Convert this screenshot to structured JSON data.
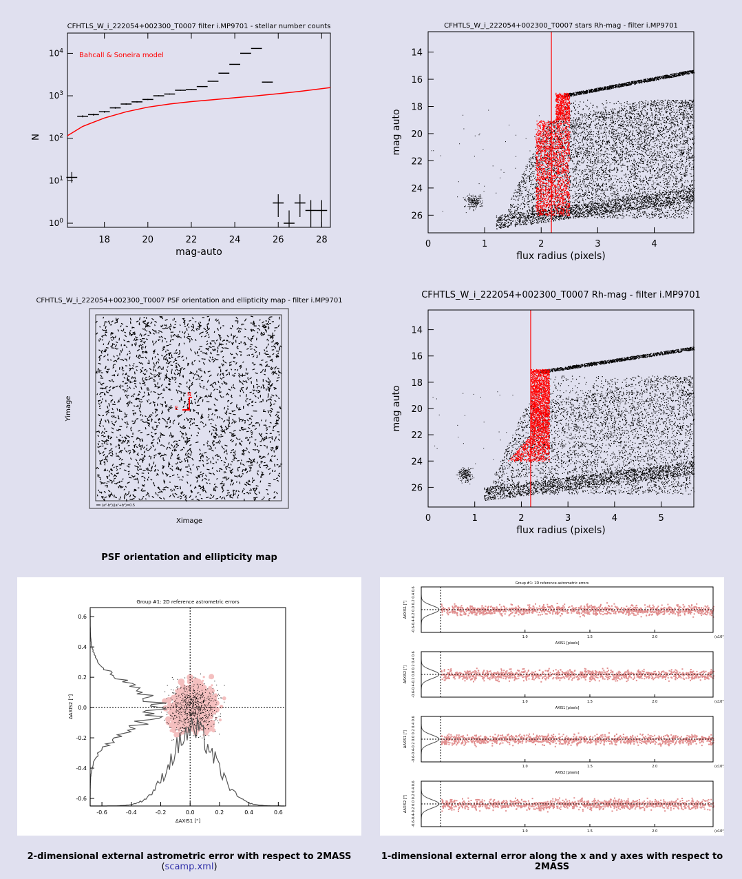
{
  "colors": {
    "bg": "#e0e0ef",
    "red": "#ff0000",
    "dred": "#c81e1e",
    "pink": "#f2a0a0"
  },
  "chart_data": [
    {
      "type": "scatter",
      "title": "CFHTLS_W_i_222054+002300_T0007 filter i.MP9701 - stellar number counts",
      "xlabel": "mag-auto",
      "ylabel": "N",
      "log_y": true,
      "xlim": [
        16.3,
        28.4
      ],
      "ylim": [
        0.8,
        30000
      ],
      "xticks": [
        "18",
        "20",
        "22",
        "24",
        "26",
        "28"
      ],
      "yticks": [
        "10^0",
        "10^1",
        "10^2",
        "10^3",
        "10^4"
      ],
      "model_label": "Bahcall & Soneira model",
      "model_x": [
        16.3,
        17,
        18,
        19,
        20,
        21,
        22,
        23,
        24,
        25,
        26,
        27,
        28.4
      ],
      "model_y": [
        115,
        190,
        300,
        420,
        540,
        640,
        730,
        810,
        900,
        1000,
        1120,
        1270,
        1560
      ],
      "x": [
        16.5,
        17.0,
        17.5,
        18.0,
        18.5,
        19.0,
        19.5,
        20.0,
        20.5,
        21.0,
        21.5,
        22.0,
        22.5,
        23.0,
        23.5,
        24.0,
        24.5,
        25.0,
        25.5,
        26.0,
        26.5,
        27.0,
        27.5,
        28.0
      ],
      "y": [
        12,
        330,
        360,
        420,
        520,
        640,
        720,
        820,
        1000,
        1100,
        1350,
        1400,
        1650,
        2200,
        3400,
        5500,
        10000,
        13000,
        2100,
        3,
        1,
        3,
        2,
        2
      ],
      "yerr_up": [
        4,
        18,
        19,
        20,
        23,
        25,
        27,
        29,
        32,
        33,
        37,
        37,
        41,
        47,
        58,
        74,
        100,
        114,
        46,
        1.8,
        1,
        1.8,
        1.5,
        1.5
      ],
      "yerr_dn": [
        3,
        18,
        19,
        20,
        23,
        25,
        27,
        29,
        32,
        33,
        37,
        37,
        41,
        47,
        58,
        74,
        100,
        114,
        46,
        1.6,
        0.5,
        1.6,
        1.2,
        1.2
      ]
    },
    {
      "type": "scatter",
      "title": "CFHTLS_W_i_222054+002300_T0007 stars Rh-mag - filter i.MP9701",
      "xlabel": "flux radius (pixels)",
      "ylabel": "mag auto",
      "xlim": [
        0,
        4.7
      ],
      "ylim": [
        27.3,
        12.5
      ],
      "xticks": [
        "0",
        "1",
        "2",
        "3",
        "4"
      ],
      "yticks": [
        "14",
        "16",
        "18",
        "20",
        "22",
        "24",
        "26"
      ],
      "vline_x": 2.18
    },
    {
      "type": "scatter",
      "title": "CFHTLS_W_i_222054+002300_T0007 PSF orientation and ellipticity map - filter i.MP9701",
      "xlabel": "Ximage",
      "ylabel": "Yimage",
      "legend_text": "(a²-b²)/(a²+b²)=0.5"
    },
    {
      "type": "scatter",
      "title": "CFHTLS_W_i_222054+002300_T0007 Rh-mag - filter i.MP9701",
      "xlabel": "flux radius (pixels)",
      "ylabel": "mag auto",
      "xlim": [
        0,
        5.7
      ],
      "ylim": [
        27.5,
        12.5
      ],
      "xticks": [
        "0",
        "1",
        "2",
        "3",
        "4",
        "5"
      ],
      "yticks": [
        "14",
        "16",
        "18",
        "20",
        "22",
        "24",
        "26"
      ],
      "vline_x": 2.2
    },
    {
      "type": "scatter",
      "title": "Group #1: 2D reference astrometric errors",
      "xlabel": "ΔAXIS1 [\"]",
      "ylabel": "ΔAXIS2 [\"]",
      "xlim": [
        -0.68,
        0.65
      ],
      "ylim": [
        -0.65,
        0.66
      ],
      "xticks": [
        "-0.6",
        "-0.4",
        "-0.2",
        "0.0",
        "0.2",
        "0.4",
        "0.6"
      ],
      "yticks": [
        "-0.6",
        "-0.4",
        "-0.2",
        "0.0",
        "0.2",
        "0.4",
        "0.6"
      ]
    },
    {
      "type": "scatter",
      "title": "Group #1: 1D reference astrometric errors",
      "panels": [
        {
          "ylabel": "ΔAXIS1 [\"]",
          "xlabel": "AXIS1 [pixels]"
        },
        {
          "ylabel": "ΔAXIS2 [\"]",
          "xlabel": "AXIS1 [pixels]"
        },
        {
          "ylabel": "ΔAXIS1 [\"]",
          "xlabel": "AXIS2 [pixels]"
        },
        {
          "ylabel": "ΔAXIS2 [\"]",
          "xlabel": "AXIS2 [pixels]"
        }
      ],
      "xlim": [
        0.2,
        2.45
      ],
      "xticks": [
        "1.0",
        "1.5",
        "2.0"
      ],
      "yticks": "-0.6-0.4-0.2 0.0 0.2 0.4 0.6",
      "xscale_label": "(x10⁴)"
    }
  ],
  "captions": {
    "psf": "PSF orientation and ellipticity map",
    "err2d": "2-dimensional external astrometric error with respect to 2MASS",
    "err2d_link": "scamp.xml",
    "err1d": "1-dimensional external error along the x and y axes with respect to 2MASS"
  }
}
